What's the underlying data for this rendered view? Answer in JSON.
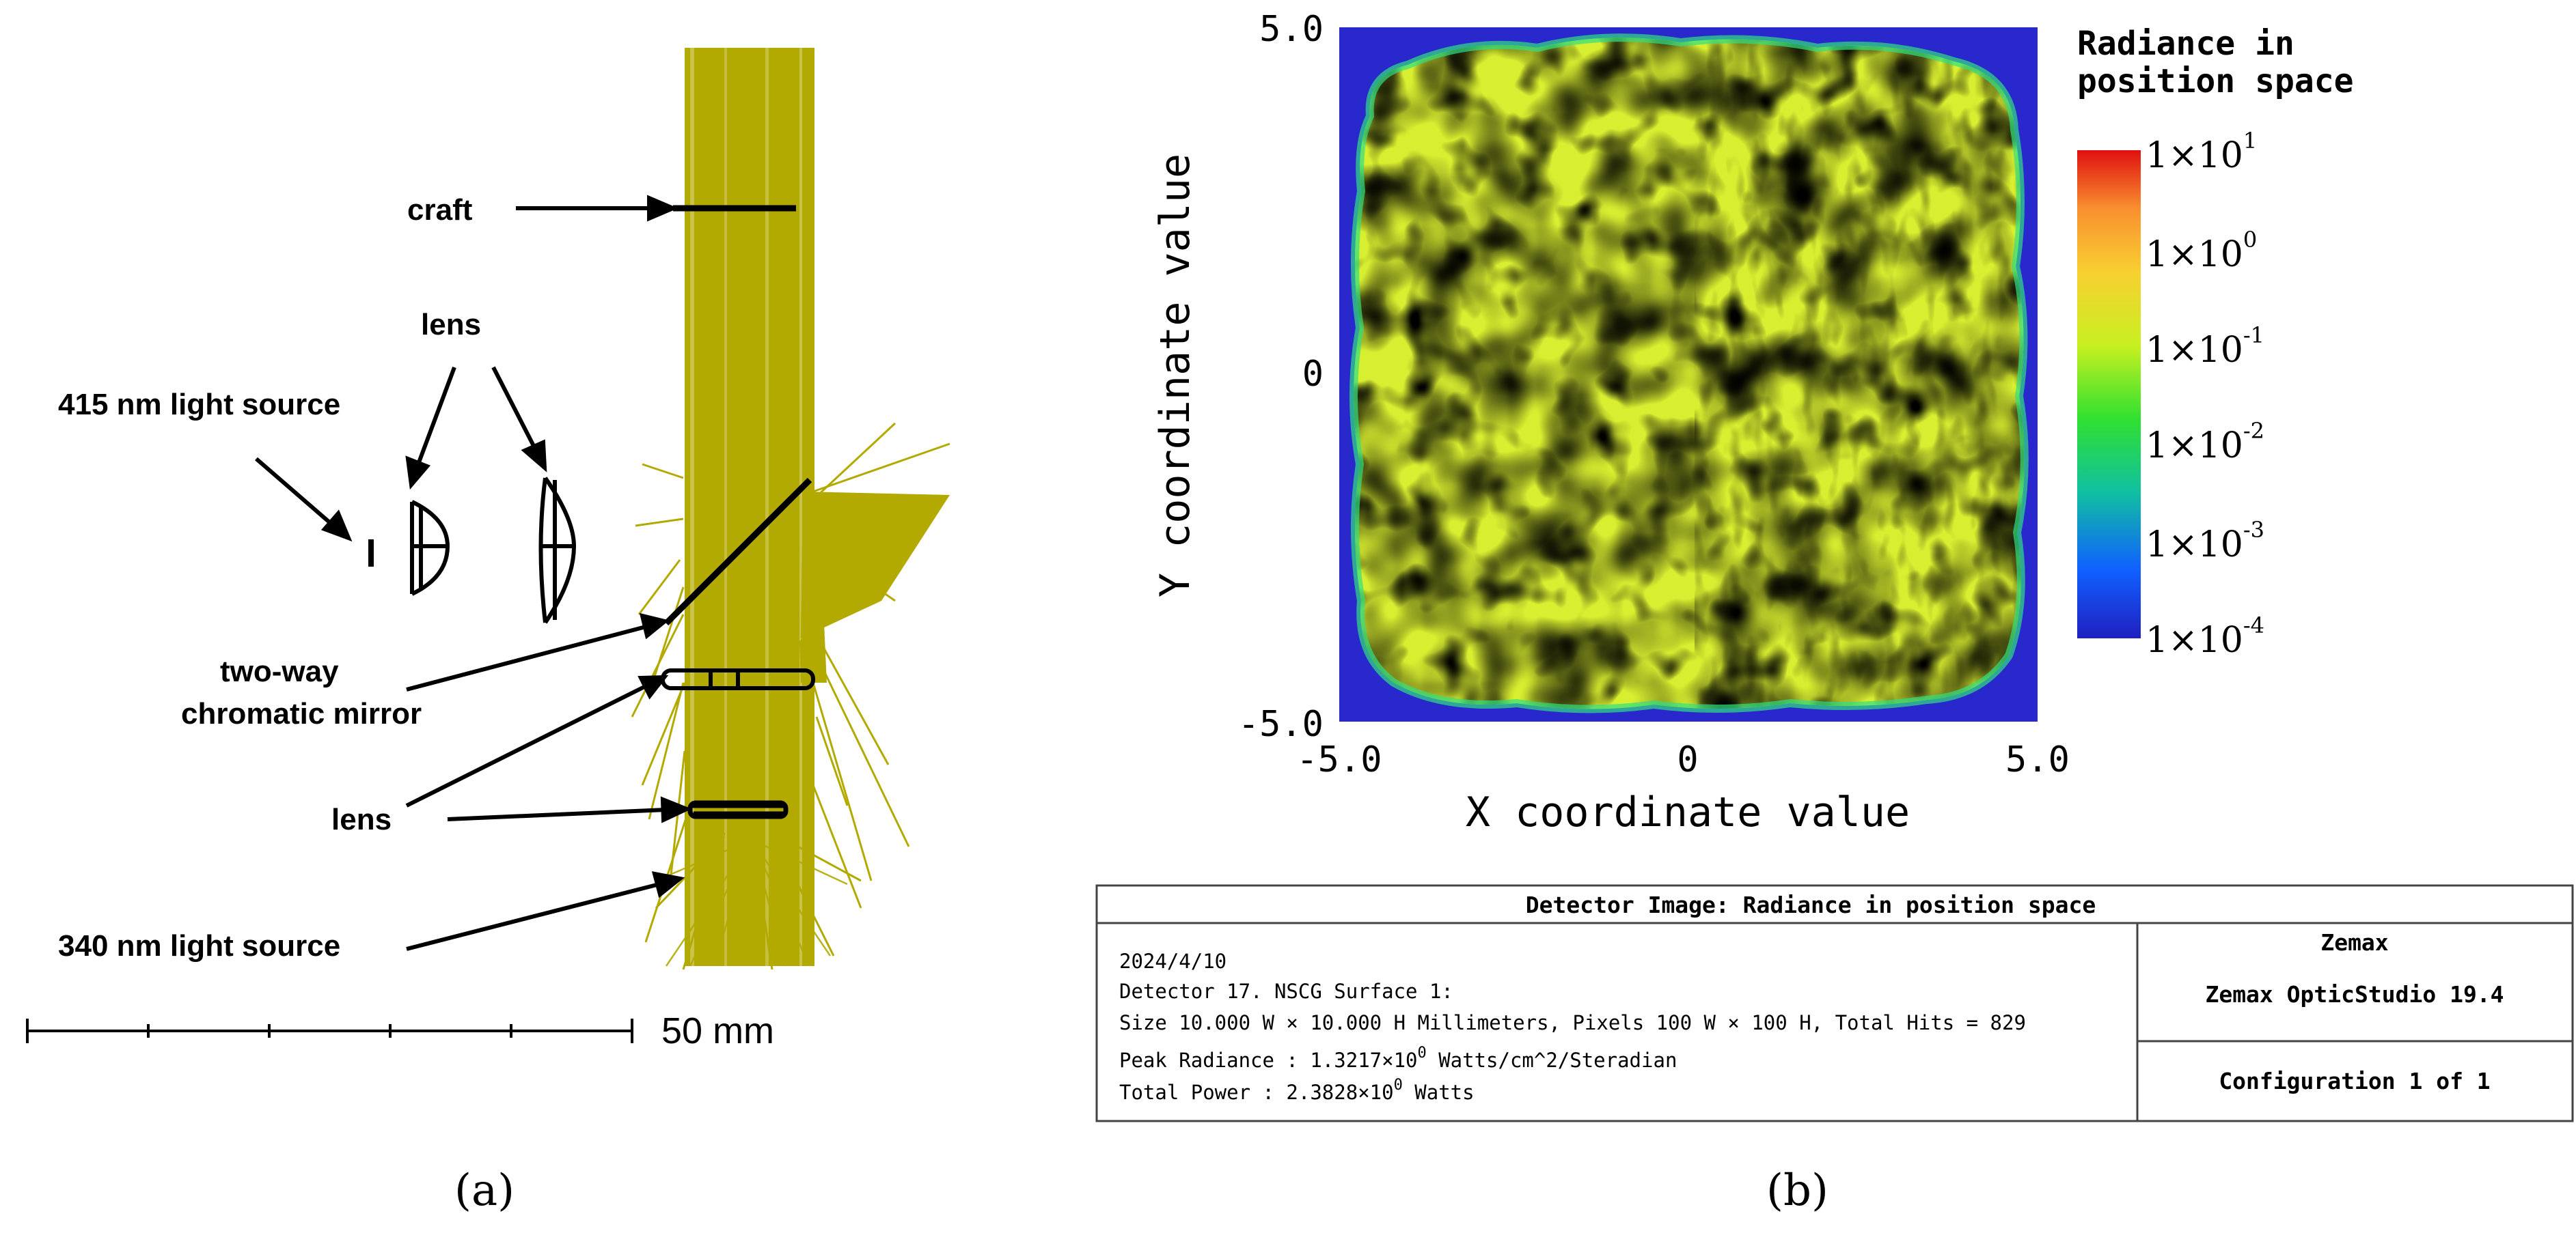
{
  "panel_a": {
    "labels": {
      "craft": "craft",
      "lens_top": "lens",
      "source_415": "415 nm light source",
      "mirror_line1": "two-way",
      "mirror_line2": "chromatic mirror",
      "lens_bottom": "lens",
      "source_340": "340 nm light source"
    },
    "scale_bar_label": "50 mm",
    "colors": {
      "rays": "#b2aa00",
      "ink": "#000000"
    },
    "caption": "(a)"
  },
  "panel_b": {
    "chart_data": {
      "type": "heatmap",
      "xlabel": "X coordinate value",
      "ylabel": "Y coordinate value",
      "xlim": [
        -5.0,
        5.0
      ],
      "ylim": [
        -5.0,
        5.0
      ],
      "x_ticks": [
        "-5.0",
        "0",
        "5.0"
      ],
      "y_ticks": [
        "5.0",
        "0",
        "-5.0"
      ],
      "colorbar": {
        "title_line1": "Radiance in",
        "title_line2": "position space",
        "scale": "log",
        "ticks": [
          {
            "mantissa": "1×10",
            "exp": "1"
          },
          {
            "mantissa": "1×10",
            "exp": "0"
          },
          {
            "mantissa": "1×10",
            "exp": "-1"
          },
          {
            "mantissa": "1×10",
            "exp": "-2"
          },
          {
            "mantissa": "1×10",
            "exp": "-3"
          },
          {
            "mantissa": "1×10",
            "exp": "-4"
          }
        ],
        "colors": [
          "#2020c0",
          "#1060ff",
          "#10c0a0",
          "#30e030",
          "#c8f020",
          "#f8e830",
          "#f8a030",
          "#e02010"
        ]
      },
      "background_color": "#2828cc"
    },
    "info_box": {
      "title": "Detector Image: Radiance in position space",
      "date": "2024/4/10",
      "detector": "Detector 17. NSCG Surface 1:",
      "size": "Size 10.000 W × 10.000 H Millimeters, Pixels 100 W × 100 H, Total Hits = 829",
      "peak_label": "Peak Radiance  :  1.3217×10",
      "peak_exp": "0",
      "peak_unit": " Watts/cm^2/Steradian",
      "power_label": "Total Power    :  2.3828×10",
      "power_exp": "0",
      "power_unit": " Watts",
      "company": "Zemax",
      "product": "Zemax OpticStudio 19.4",
      "configuration": "Configuration 1 of 1"
    },
    "caption": "(b)"
  }
}
